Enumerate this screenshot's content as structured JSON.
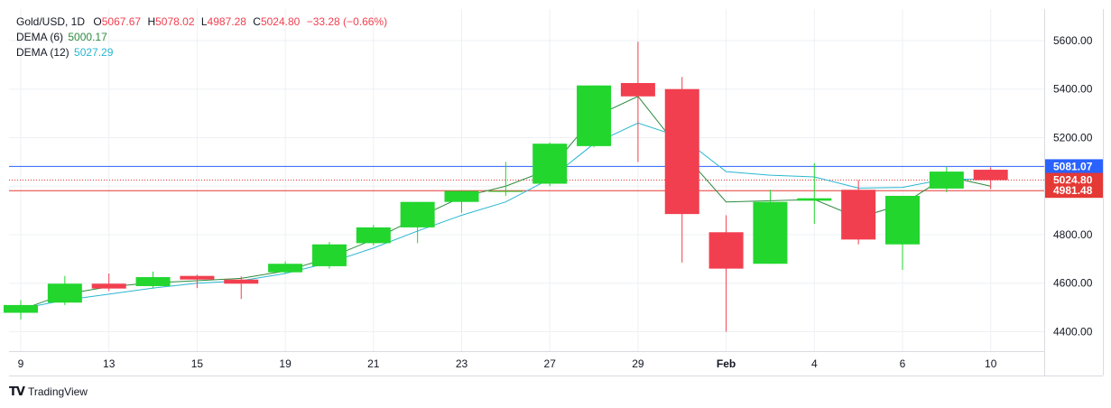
{
  "legend": {
    "symbol": "Gold/USD, 1D",
    "o_label": "O",
    "o_value": "5067.67",
    "h_label": "H",
    "h_value": "5078.02",
    "l_label": "L",
    "l_value": "4987.28",
    "c_label": "C",
    "c_value": "5024.80",
    "change": "−33.28 (−0.66%)",
    "dema6_label": "DEMA (6)",
    "dema6_value": "5000.17",
    "dema12_label": "DEMA (12)",
    "dema12_value": "5027.29"
  },
  "brand": {
    "name": "TradingView"
  },
  "colors": {
    "up": "#22d62e",
    "down": "#f23f4f",
    "dema6": "#2e8b3e",
    "dema12": "#29b6d1",
    "blue_line": "#2962ff",
    "red_line": "#e53935",
    "grid": "#eef0f3",
    "axis_text": "#131722"
  },
  "chart_data": {
    "type": "candlestick",
    "ylim": [
      4320,
      5730
    ],
    "yticks": [
      "5600.00",
      "5400.00",
      "5200.00",
      "5000.00",
      "4800.00",
      "4600.00",
      "4400.00"
    ],
    "ytick_values": [
      5600,
      5400,
      5200,
      5000,
      4800,
      4600,
      4400
    ],
    "xticks": [
      {
        "label": "9",
        "i": 0
      },
      {
        "label": "13",
        "i": 2
      },
      {
        "label": "15",
        "i": 4
      },
      {
        "label": "19",
        "i": 6
      },
      {
        "label": "21",
        "i": 8
      },
      {
        "label": "23",
        "i": 10
      },
      {
        "label": "27",
        "i": 12
      },
      {
        "label": "29",
        "i": 14
      },
      {
        "label": "Feb",
        "i": 16
      },
      {
        "label": "4",
        "i": 18
      },
      {
        "label": "6",
        "i": 20
      },
      {
        "label": "10",
        "i": 22
      }
    ],
    "candles": [
      {
        "o": 4478,
        "h": 4530,
        "l": 4450,
        "c": 4510
      },
      {
        "o": 4520,
        "h": 4630,
        "l": 4510,
        "c": 4598
      },
      {
        "o": 4598,
        "h": 4640,
        "l": 4568,
        "c": 4578
      },
      {
        "o": 4588,
        "h": 4648,
        "l": 4578,
        "c": 4625
      },
      {
        "o": 4630,
        "h": 4635,
        "l": 4580,
        "c": 4615
      },
      {
        "o": 4615,
        "h": 4628,
        "l": 4535,
        "c": 4598
      },
      {
        "o": 4645,
        "h": 4690,
        "l": 4640,
        "c": 4680
      },
      {
        "o": 4670,
        "h": 4770,
        "l": 4660,
        "c": 4760
      },
      {
        "o": 4765,
        "h": 4840,
        "l": 4755,
        "c": 4830
      },
      {
        "o": 4830,
        "h": 4935,
        "l": 4765,
        "c": 4935
      },
      {
        "o": 4935,
        "h": 4980,
        "l": 4890,
        "c": 4980
      },
      {
        "o": 4980,
        "h": 5100,
        "l": 4960,
        "c": 4980
      },
      {
        "o": 5010,
        "h": 5180,
        "l": 5000,
        "c": 5175
      },
      {
        "o": 5165,
        "h": 5415,
        "l": 5160,
        "c": 5415
      },
      {
        "o": 5425,
        "h": 5595,
        "l": 5100,
        "c": 5370
      },
      {
        "o": 5400,
        "h": 5450,
        "l": 4685,
        "c": 4885
      },
      {
        "o": 4810,
        "h": 4880,
        "l": 4400,
        "c": 4660
      },
      {
        "o": 4680,
        "h": 4985,
        "l": 4680,
        "c": 4935
      },
      {
        "o": 4940,
        "h": 5095,
        "l": 4845,
        "c": 4950
      },
      {
        "o": 4985,
        "h": 5025,
        "l": 4760,
        "c": 4780
      },
      {
        "o": 4760,
        "h": 4960,
        "l": 4655,
        "c": 4960
      },
      {
        "o": 4990,
        "h": 5080,
        "l": 4975,
        "c": 5060
      },
      {
        "o": 5067.67,
        "h": 5078.02,
        "l": 4987.28,
        "c": 5024.8
      }
    ],
    "dema6": [
      4490,
      4555,
      4585,
      4602,
      4610,
      4620,
      4650,
      4705,
      4780,
      4870,
      4955,
      5000,
      5070,
      5285,
      5370,
      5140,
      4935,
      4940,
      4945,
      4870,
      4925,
      5040,
      5000
    ],
    "dema12": [
      4495,
      4530,
      4555,
      4580,
      4600,
      4610,
      4640,
      4685,
      4745,
      4815,
      4880,
      4935,
      5030,
      5175,
      5260,
      5200,
      5060,
      5045,
      5038,
      4992,
      4995,
      5030,
      5027
    ],
    "hlines": [
      {
        "value": 5081.07,
        "label": "5081.07",
        "color": "blue_line",
        "style": "solid"
      },
      {
        "value": 5024.8,
        "label": "5024.80",
        "color": "red_line",
        "style": "dotted"
      },
      {
        "value": 4981.48,
        "label": "4981.48",
        "color": "red_line",
        "style": "solid"
      }
    ]
  }
}
